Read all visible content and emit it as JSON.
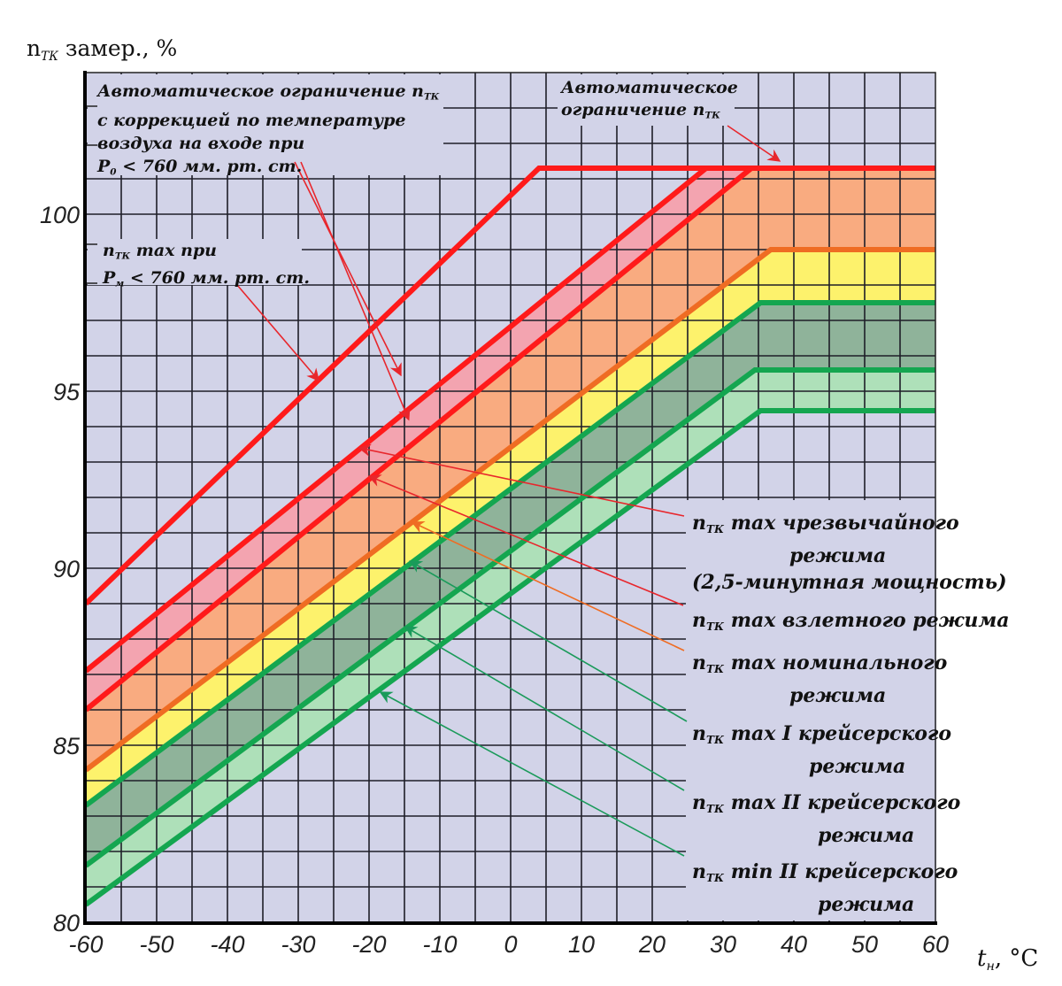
{
  "chart_data": {
    "type": "line",
    "title": "",
    "ylabel": {
      "main": "n",
      "sub": "ТК",
      "rest": " замер., %"
    },
    "xlabel": {
      "main": "t",
      "sub": "н",
      "rest": ", °C"
    },
    "xlim": [
      -60,
      60
    ],
    "ylim": [
      80,
      104
    ],
    "x_ticks": [
      -60,
      -50,
      -40,
      -30,
      -20,
      -10,
      0,
      10,
      20,
      30,
      40,
      50,
      60
    ],
    "y_ticks": [
      80,
      85,
      90,
      95,
      100
    ],
    "x_grid_step": 5,
    "y_grid_step": 1,
    "grid": true,
    "series": [
      {
        "name": "n_ТК max при P_м < 760 мм. рт. ст.",
        "color": "#ff1a1a",
        "points": [
          [
            -60,
            89.0
          ],
          [
            4,
            101.3
          ],
          [
            60,
            101.3
          ]
        ]
      },
      {
        "name": "n_ТК max чрезвычайного режима (2,5-минутная мощность)",
        "color": "#ff1a1a",
        "points": [
          [
            -60,
            87.1
          ],
          [
            27.6,
            101.3
          ],
          [
            60,
            101.3
          ]
        ]
      },
      {
        "name": "n_ТК max взлетного режима",
        "color": "#ff1a1a",
        "points": [
          [
            -60,
            86.0
          ],
          [
            34,
            101.3
          ],
          [
            60,
            101.3
          ]
        ]
      },
      {
        "name": "n_ТК max номинального режима",
        "color": "#ef6c23",
        "points": [
          [
            -60,
            84.3
          ],
          [
            36.75,
            99.0
          ],
          [
            60,
            99.0
          ]
        ]
      },
      {
        "name": "n_ТК max I крейсерского режима",
        "color": "#14a650",
        "points": [
          [
            -60,
            83.3
          ],
          [
            35.3,
            97.5
          ],
          [
            60,
            97.5
          ]
        ]
      },
      {
        "name": "n_ТК max II крейсерского режима",
        "color": "#14a650",
        "points": [
          [
            -60,
            81.6
          ],
          [
            34.5,
            95.6
          ],
          [
            60,
            95.6
          ]
        ]
      },
      {
        "name": "n_ТК min II крейсерского режима",
        "color": "#14a650",
        "points": [
          [
            -60,
            80.5
          ],
          [
            35.3,
            94.45
          ],
          [
            60,
            94.45
          ]
        ]
      }
    ],
    "bands": [
      {
        "between": [
          1,
          2
        ],
        "color": "#f3a4b0"
      },
      {
        "between": [
          2,
          3
        ],
        "color": "#f9ab80"
      },
      {
        "between": [
          3,
          4
        ],
        "color": "#fdf26c"
      },
      {
        "between": [
          4,
          5
        ],
        "color": "#8fb39a"
      },
      {
        "between": [
          5,
          6
        ],
        "color": "#aee0b9"
      }
    ],
    "colors": {
      "background": "#d2d3e8",
      "grid": "#1e1e28",
      "red": "#ff1a1a",
      "orange": "#ef6c23",
      "green": "#14a650"
    },
    "annotations": {
      "auto_limit_corrected": [
        "Автоматическое ограничение n",
        "с коррекцией по температуре",
        "воздуха на входе при",
        "P",
        "< 760 мм. рт. ст."
      ],
      "auto_limit_corrected_sub": [
        "ТК",
        "0"
      ],
      "auto_limit": [
        "Автоматическое",
        "ограничение n"
      ],
      "auto_limit_sub": "ТК",
      "pm": [
        "n",
        " max при",
        "P",
        "< 760 мм. рт. ст."
      ],
      "pm_sub": [
        "ТК",
        "м"
      ],
      "legend": [
        {
          "lines": [
            "max чрезвычайного",
            "режима",
            "(2,5-минутная мощность)"
          ],
          "color": "#e8262c",
          "arrow_data": [
            [
              -21.4,
              93.4
            ]
          ]
        },
        {
          "lines": [
            "max взлетного режима"
          ],
          "color": "#e8262c",
          "arrow_data": [
            [
              -20,
              92.6
            ]
          ]
        },
        {
          "lines": [
            "max номинального",
            "режима"
          ],
          "color": "#ef6c23",
          "arrow_data": [
            [
              -13.9,
              91.3
            ]
          ]
        },
        {
          "lines": [
            "max I крейсерского",
            "режима"
          ],
          "color": "#1a9a5a",
          "arrow_data": [
            [
              -14.2,
              90.2
            ]
          ]
        },
        {
          "lines": [
            "max II крейсерского",
            "режима"
          ],
          "color": "#1a9a5a",
          "arrow_data": [
            [
              -14.9,
              88.35
            ]
          ]
        },
        {
          "lines": [
            "min II крейсерского",
            "режима"
          ],
          "color": "#1a9a5a",
          "arrow_data": [
            [
              -18.4,
              86.5
            ]
          ]
        }
      ],
      "legend_prefix": "n",
      "legend_sub": "ТК"
    }
  }
}
